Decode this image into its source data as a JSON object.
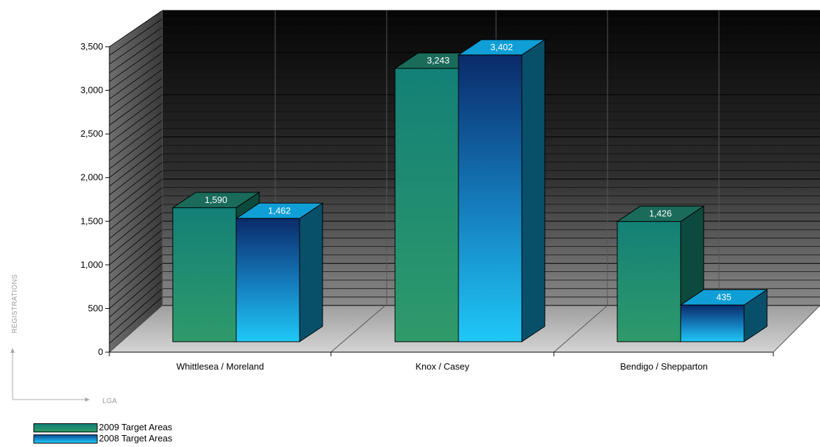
{
  "chart_data": {
    "type": "bar",
    "categories": [
      "Whittlesea / Moreland",
      "Knox / Casey",
      "Bendigo / Shepparton"
    ],
    "series": [
      {
        "name": "2009 Target Areas",
        "values": [
          1590,
          3243,
          1426
        ]
      },
      {
        "name": "2008 Target Areas",
        "values": [
          1462,
          3402,
          435
        ]
      }
    ],
    "value_labels": [
      [
        "1,590",
        "3,243",
        "1,426"
      ],
      [
        "1,462",
        "3,402",
        "435"
      ]
    ],
    "ytick_labels": [
      "0",
      "500",
      "1,000",
      "1,500",
      "2,000",
      "2,500",
      "3,000",
      "3,500"
    ],
    "yticks": [
      0,
      500,
      1000,
      1500,
      2000,
      2500,
      3000,
      3500
    ],
    "ylim": [
      0,
      3500
    ],
    "xlabel": "LGA",
    "ylabel": "REGISTRATIONS",
    "grid": true,
    "legend_position": "bottom-left",
    "style": "3d",
    "colors": {
      "series_2009": "#1f8a78",
      "series_2008": "#19b9f0",
      "backwall": "#333333",
      "floor": "#bdbdbd"
    }
  }
}
